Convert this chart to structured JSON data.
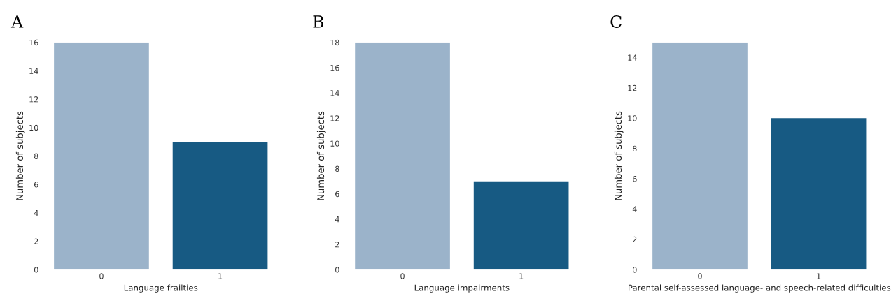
{
  "chart_data": [
    {
      "type": "bar",
      "title": "A",
      "xlabel": "Language frailties",
      "ylabel": "Number of subjects",
      "categories": [
        "0",
        "1"
      ],
      "values": [
        16,
        9
      ],
      "ylim": [
        0,
        16
      ],
      "colors": [
        "#9bb3ca",
        "#175a83"
      ],
      "yticks": [
        0,
        2,
        4,
        6,
        8,
        10,
        12,
        14,
        16
      ],
      "grid": false
    },
    {
      "type": "bar",
      "title": "B",
      "xlabel": "Language impairments",
      "ylabel": "Number of subjects",
      "categories": [
        "0",
        "1"
      ],
      "values": [
        18,
        7
      ],
      "ylim": [
        0,
        18
      ],
      "colors": [
        "#9bb3ca",
        "#175a83"
      ],
      "yticks": [
        0,
        2,
        4,
        6,
        8,
        10,
        12,
        14,
        16,
        18
      ],
      "grid": false
    },
    {
      "type": "bar",
      "title": "C",
      "xlabel": "Parental self-assessed language- and speech-related difficulties",
      "ylabel": "Number of subjects",
      "categories": [
        "0",
        "1"
      ],
      "values": [
        15,
        10
      ],
      "ylim": [
        0,
        15
      ],
      "colors": [
        "#9bb3ca",
        "#175a83"
      ],
      "yticks": [
        0,
        2,
        4,
        6,
        8,
        10,
        12,
        14
      ],
      "grid": false
    }
  ]
}
